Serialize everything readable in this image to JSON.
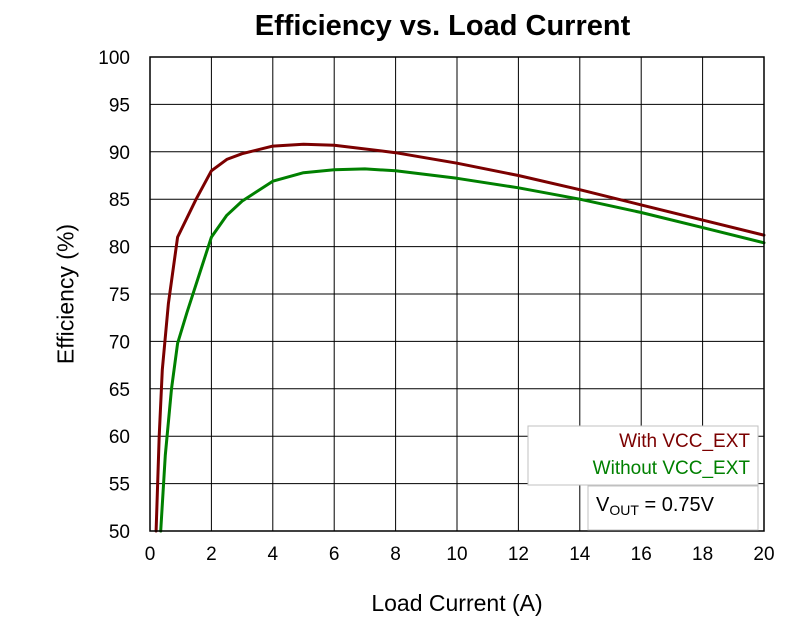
{
  "chart_data": {
    "type": "line",
    "title": "Efficiency vs. Load Current",
    "xlabel": "Load Current (A)",
    "ylabel": "Efficiency (%)",
    "xlim": [
      0,
      20
    ],
    "ylim": [
      50,
      100
    ],
    "xticks": [
      "0",
      "2",
      "4",
      "6",
      "8",
      "10",
      "12",
      "14",
      "16",
      "18",
      "20"
    ],
    "yticks": [
      "50",
      "55",
      "60",
      "65",
      "70",
      "75",
      "80",
      "85",
      "90",
      "95",
      "100"
    ],
    "grid": true,
    "legend_position": "bottom-right",
    "series": [
      {
        "name": "With VCC_EXT",
        "color": "#7b0000",
        "x": [
          0.2,
          0.3,
          0.4,
          0.6,
          0.9,
          1.5,
          2.0,
          2.5,
          3.0,
          4.0,
          5.0,
          6.0,
          8.0,
          10.0,
          12.0,
          14.0,
          16.0,
          18.0,
          20.0
        ],
        "y": [
          50.0,
          60.0,
          67.0,
          74.0,
          81.0,
          85.0,
          88.0,
          89.2,
          89.8,
          90.6,
          90.8,
          90.7,
          89.9,
          88.8,
          87.5,
          86.0,
          84.4,
          82.8,
          81.2
        ]
      },
      {
        "name": "Without VCC_EXT",
        "color": "#008000",
        "x": [
          0.35,
          0.5,
          0.7,
          0.9,
          1.2,
          1.6,
          2.0,
          2.5,
          3.0,
          4.0,
          5.0,
          6.0,
          7.0,
          8.0,
          10.0,
          12.0,
          14.0,
          16.0,
          18.0,
          20.0
        ],
        "y": [
          50.0,
          58.0,
          65.0,
          69.8,
          73.0,
          77.0,
          81.0,
          83.3,
          84.8,
          86.9,
          87.8,
          88.1,
          88.2,
          88.0,
          87.2,
          86.2,
          85.0,
          83.6,
          82.0,
          80.4
        ]
      }
    ],
    "annotation": {
      "prefix": "V",
      "subscript": "OUT",
      "suffix": " = 0.75V"
    }
  }
}
